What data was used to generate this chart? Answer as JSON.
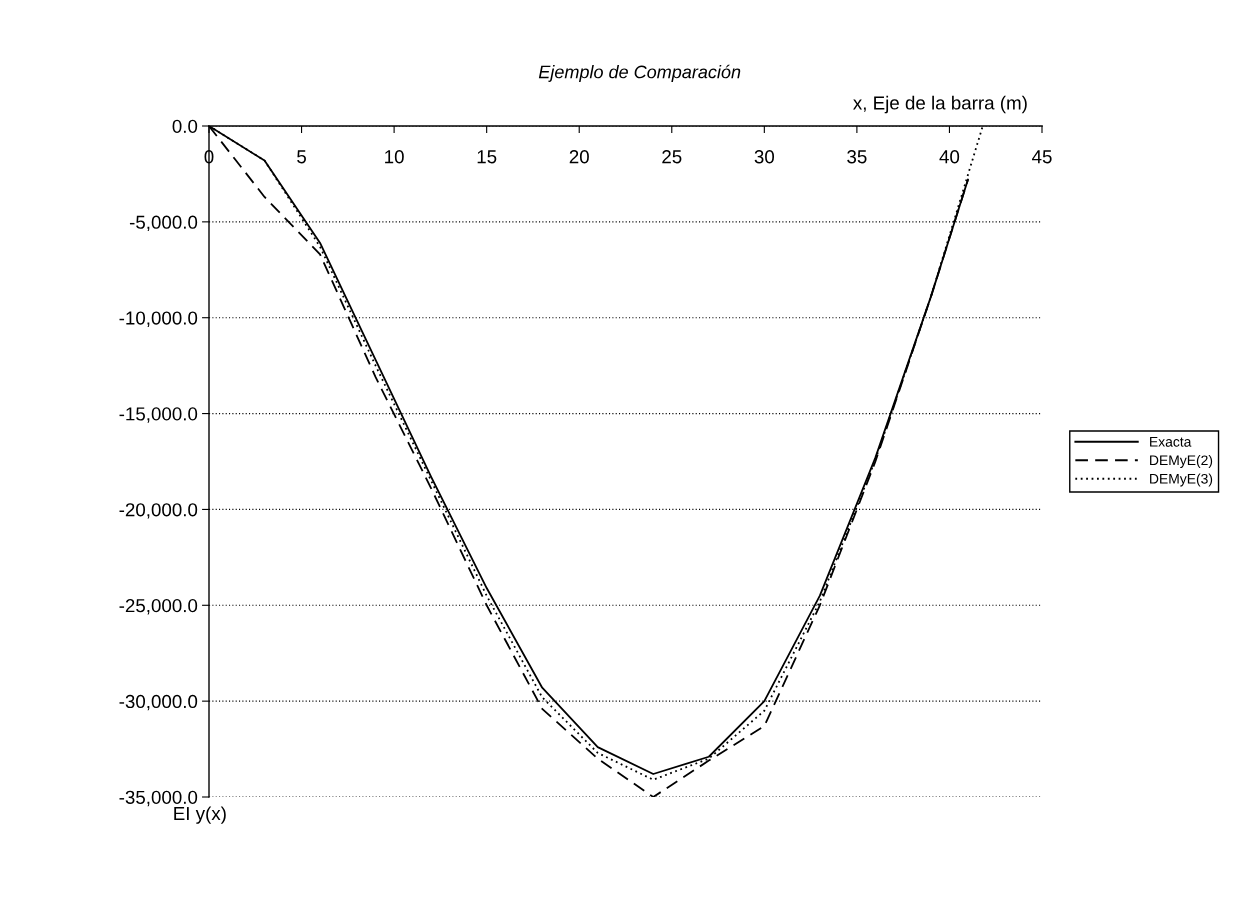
{
  "chart_data": {
    "type": "line",
    "title": "Ejemplo de Comparación",
    "xlabel": "x, Eje de la barra (m)",
    "ylabel": "EI y(x)",
    "xlim": [
      0,
      45
    ],
    "xticks": [
      0,
      5,
      10,
      15,
      20,
      25,
      30,
      35,
      40,
      45
    ],
    "ylim": [
      -35000,
      0
    ],
    "yticks": [
      {
        "value": 0,
        "label": "0.0"
      },
      {
        "value": -5000,
        "label": "-5,000.0"
      },
      {
        "value": -10000,
        "label": "-10,000.0"
      },
      {
        "value": -15000,
        "label": "-15,000.0"
      },
      {
        "value": -20000,
        "label": "-20,000.0"
      },
      {
        "value": -25000,
        "label": "-25,000.0"
      },
      {
        "value": -30000,
        "label": "-30,000.0"
      },
      {
        "value": -35000,
        "label": "-35,000.0"
      }
    ],
    "grid": "y",
    "legend": "right",
    "series": [
      {
        "name": "Exacta",
        "color": "#000000",
        "line_style": "solid",
        "x": [
          0,
          3,
          6,
          9,
          12,
          15,
          18,
          21,
          24,
          27,
          30,
          33,
          36,
          39,
          41
        ],
        "values": [
          0,
          -1800,
          -6100,
          -12200,
          -18300,
          -24100,
          -29300,
          -32400,
          -33800,
          -32900,
          -30000,
          -24500,
          -17300,
          -8900,
          -2800
        ]
      },
      {
        "name": "DEMyE(2)",
        "color": "#000000",
        "line_style": "dashed",
        "x": [
          0,
          3,
          6,
          9,
          12,
          15,
          18,
          21,
          24,
          27,
          30,
          33,
          36,
          39,
          41
        ],
        "values": [
          0,
          -3700,
          -6700,
          -13100,
          -18900,
          -25000,
          -30400,
          -33000,
          -35000,
          -33100,
          -31300,
          -25000,
          -17500,
          -8900,
          -2800
        ]
      },
      {
        "name": "DEMyE(3)",
        "color": "#000000",
        "line_style": "dotted",
        "x": [
          0,
          3,
          6,
          9,
          12,
          15,
          18,
          21,
          24,
          27,
          30,
          33,
          36,
          39,
          41.8
        ],
        "values": [
          0,
          -1800,
          -6300,
          -12500,
          -18500,
          -24500,
          -29800,
          -32700,
          -34100,
          -33000,
          -30500,
          -24800,
          -17400,
          -8900,
          0
        ]
      }
    ]
  }
}
